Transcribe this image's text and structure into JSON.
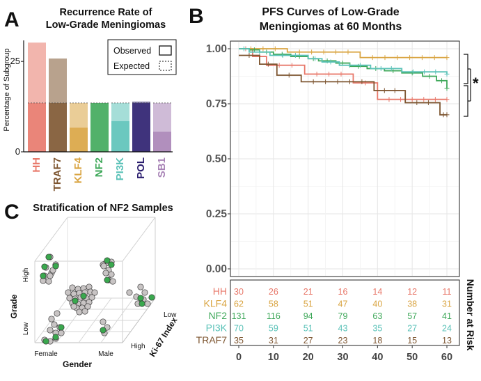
{
  "panels": {
    "a": {
      "letter": "A",
      "title_line1": "Recurrence Rate of",
      "title_line2": "Low-Grade Meningiomas"
    },
    "b": {
      "letter": "B",
      "title_line1": "PFS Curves of Low-Grade",
      "title_line2": "Meningiomas at 60 Months",
      "significance": "*"
    },
    "c": {
      "letter": "C",
      "title": "Stratification of NF2 Samples"
    }
  },
  "chart_data": [
    {
      "type": "bar",
      "panel": "A",
      "title": "Recurrence Rate of Low-Grade Meningiomas",
      "ylabel": "Percentage of Subgroup",
      "ylim": [
        0,
        31
      ],
      "yticks": [
        "0",
        "25"
      ],
      "categories": [
        "HH",
        "TRAF7",
        "KLF4",
        "NF2",
        "PI3K",
        "POL",
        "SB1"
      ],
      "category_colors": [
        "#e8786a",
        "#7d5530",
        "#d9a441",
        "#3fa85a",
        "#5bc2b8",
        "#2a1d6e",
        "#a883b6"
      ],
      "series": [
        {
          "name": "Observed",
          "values": [
            30.2,
            25.8,
            6.7,
            13.5,
            8.5,
            13.9,
            5.6
          ]
        },
        {
          "name": "Expected",
          "values": [
            13.5,
            13.5,
            13.5,
            13.5,
            13.5,
            13.5,
            13.5
          ]
        }
      ],
      "legend": [
        "Observed",
        "Expected"
      ]
    },
    {
      "type": "line",
      "panel": "B",
      "title": "PFS Curves of Low-Grade Meningiomas at 60 Months",
      "xlim": [
        0,
        60
      ],
      "ylim": [
        0,
        1
      ],
      "xticks": [
        "0",
        "10",
        "20",
        "30",
        "40",
        "50",
        "60"
      ],
      "yticks": [
        "0.00",
        "0.25",
        "0.50",
        "0.75",
        "1.00"
      ],
      "series": [
        {
          "name": "HH",
          "color": "#e8786a",
          "steps": [
            [
              0,
              1.0
            ],
            [
              4,
              0.965
            ],
            [
              8,
              0.925
            ],
            [
              19,
              0.885
            ],
            [
              33,
              0.845
            ],
            [
              40,
              0.77
            ],
            [
              60,
              0.77
            ]
          ]
        },
        {
          "name": "KLF4",
          "color": "#d9a441",
          "steps": [
            [
              0,
              1.0
            ],
            [
              14,
              0.985
            ],
            [
              35,
              0.96
            ],
            [
              60,
              0.96
            ]
          ]
        },
        {
          "name": "NF2",
          "color": "#3fa85a",
          "steps": [
            [
              0,
              1.0
            ],
            [
              3,
              0.995
            ],
            [
              6,
              0.985
            ],
            [
              10,
              0.975
            ],
            [
              15,
              0.965
            ],
            [
              20,
              0.955
            ],
            [
              23,
              0.945
            ],
            [
              28,
              0.935
            ],
            [
              32,
              0.92
            ],
            [
              37,
              0.91
            ],
            [
              42,
              0.9
            ],
            [
              47,
              0.89
            ],
            [
              53,
              0.875
            ],
            [
              57,
              0.855
            ],
            [
              60,
              0.82
            ]
          ]
        },
        {
          "name": "PI3K",
          "color": "#5bc2b8",
          "steps": [
            [
              0,
              1.0
            ],
            [
              3,
              0.985
            ],
            [
              9,
              0.97
            ],
            [
              20,
              0.955
            ],
            [
              24,
              0.94
            ],
            [
              29,
              0.925
            ],
            [
              38,
              0.91
            ],
            [
              47,
              0.895
            ],
            [
              60,
              0.885
            ]
          ]
        },
        {
          "name": "TRAF7",
          "color": "#7d5530",
          "steps": [
            [
              0,
              0.97
            ],
            [
              6,
              0.93
            ],
            [
              11,
              0.88
            ],
            [
              18,
              0.85
            ],
            [
              39,
              0.81
            ],
            [
              48,
              0.755
            ],
            [
              58,
              0.7
            ],
            [
              60,
              0.7
            ]
          ]
        }
      ],
      "risk_table": {
        "title": "Number at Risk",
        "times": [
          0,
          10,
          20,
          30,
          40,
          50,
          60
        ],
        "rows": [
          {
            "name": "HH",
            "color": "#e8786a",
            "values": [
              "30",
              "26",
              "21",
              "16",
              "14",
              "12",
              "11"
            ]
          },
          {
            "name": "KLF4",
            "color": "#d9a441",
            "values": [
              "62",
              "58",
              "51",
              "47",
              "40",
              "38",
              "31"
            ]
          },
          {
            "name": "NF2",
            "color": "#3fa85a",
            "values": [
              "131",
              "116",
              "94",
              "79",
              "63",
              "57",
              "41"
            ]
          },
          {
            "name": "PI3K",
            "color": "#5bc2b8",
            "values": [
              "70",
              "59",
              "51",
              "43",
              "35",
              "27",
              "24"
            ]
          },
          {
            "name": "TRAF7",
            "color": "#7d5530",
            "values": [
              "35",
              "31",
              "27",
              "23",
              "18",
              "15",
              "13"
            ]
          }
        ]
      }
    },
    {
      "type": "scatter",
      "panel": "C",
      "title": "Stratification of NF2 Samples",
      "axes": {
        "x": "Gender",
        "y": "Grade",
        "z": "Ki-67 Index"
      },
      "x_levels": [
        "Female",
        "Male"
      ],
      "y_levels": [
        "Low",
        "High"
      ],
      "z_levels": [
        "Low",
        "High"
      ],
      "point_colors": {
        "default": "#c8c4c4",
        "highlight": "#3aa84e"
      }
    }
  ]
}
